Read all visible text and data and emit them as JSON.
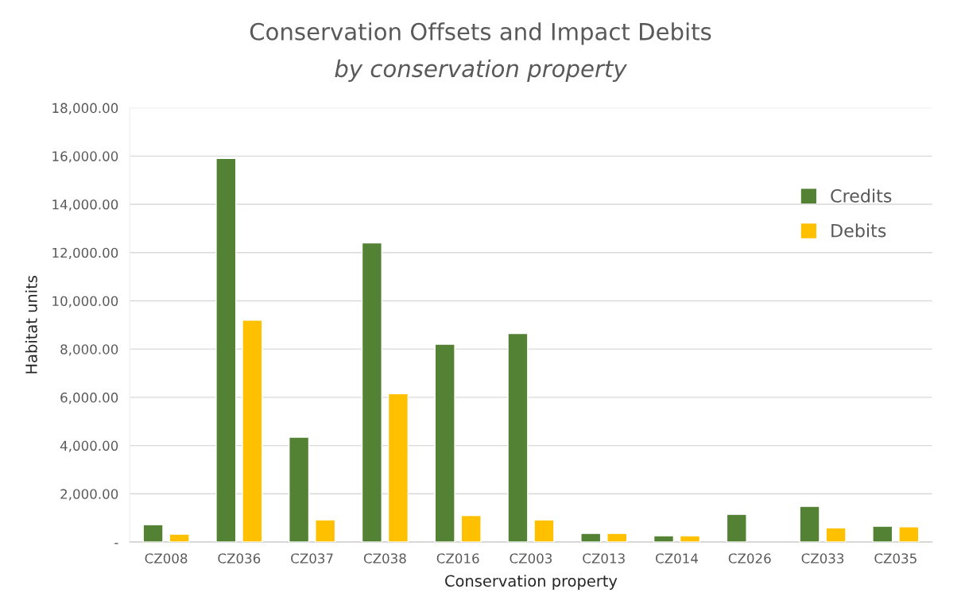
{
  "chart_data": {
    "type": "bar",
    "title": "Conservation Offsets and Impact Debits",
    "subtitle": "by conservation property",
    "xlabel": "Conservation property",
    "ylabel": "Habitat units",
    "categories": [
      "CZ008",
      "CZ036",
      "CZ037",
      "CZ038",
      "CZ016",
      "CZ003",
      "CZ013",
      "CZ014",
      "CZ026",
      "CZ033",
      "CZ035"
    ],
    "series": [
      {
        "name": "Credits",
        "color": "#548235",
        "values": [
          720,
          15900,
          4350,
          12400,
          8200,
          8650,
          360,
          260,
          1150,
          1480,
          660
        ]
      },
      {
        "name": "Debits",
        "color": "#ffc000",
        "values": [
          330,
          9200,
          920,
          6150,
          1100,
          920,
          360,
          260,
          null,
          590,
          630
        ]
      }
    ],
    "ylim": [
      0,
      18000
    ],
    "yticks": [
      {
        "value": 0,
        "label": "-"
      },
      {
        "value": 2000,
        "label": "2,000.00"
      },
      {
        "value": 4000,
        "label": "4,000.00"
      },
      {
        "value": 6000,
        "label": "6,000.00"
      },
      {
        "value": 8000,
        "label": "8,000.00"
      },
      {
        "value": 10000,
        "label": "10,000.00"
      },
      {
        "value": 12000,
        "label": "12,000.00"
      },
      {
        "value": 14000,
        "label": "14,000.00"
      },
      {
        "value": 16000,
        "label": "16,000.00"
      },
      {
        "value": 18000,
        "label": "18,000.00"
      }
    ],
    "grid": "y",
    "legend": "top right"
  }
}
